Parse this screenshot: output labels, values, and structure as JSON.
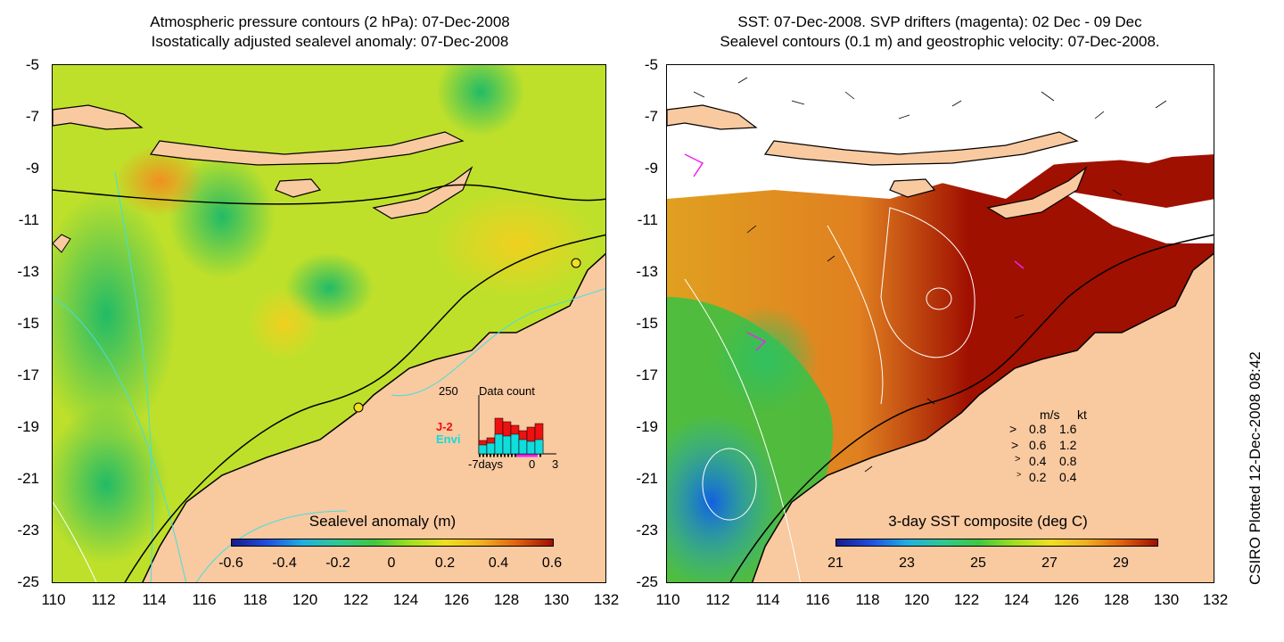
{
  "left_panel": {
    "title_line1": "Atmospheric pressure contours (2 hPa): 07-Dec-2008",
    "title_line2": "Isostatically adjusted sealevel anomaly: 07-Dec-2008",
    "colorbar_title": "Sealevel anomaly (m)",
    "colorbar_ticks": [
      "-0.6",
      "-0.4",
      "-0.2",
      "0",
      "0.2",
      "0.4",
      "0.6"
    ],
    "inset": {
      "max_label": "250",
      "title": "Data count",
      "series": [
        "J-2",
        "Envi"
      ],
      "series_colors": [
        "#ee1111",
        "#11dddd"
      ],
      "x_ticks": [
        "-7days",
        "0",
        "3"
      ]
    }
  },
  "right_panel": {
    "title_line1": "SST: 07-Dec-2008. SVP drifters (magenta): 02 Dec - 09 Dec",
    "title_line2": "Sealevel contours (0.1 m) and geostrophic velocity: 07-Dec-2008.",
    "colorbar_title": "3-day SST composite (deg C)",
    "colorbar_ticks": [
      "21",
      "23",
      "25",
      "27",
      "29"
    ],
    "velocity_legend": {
      "header_ms": "m/s",
      "header_kt": "kt",
      "rows": [
        {
          "ms": "0.8",
          "kt": "1.6"
        },
        {
          "ms": "0.6",
          "kt": "1.2"
        },
        {
          "ms": "0.4",
          "kt": "0.8"
        },
        {
          "ms": "0.2",
          "kt": "0.4"
        }
      ]
    }
  },
  "axes": {
    "y_ticks": [
      "-5",
      "-7",
      "-9",
      "-11",
      "-13",
      "-15",
      "-17",
      "-19",
      "-21",
      "-23",
      "-25"
    ],
    "x_ticks": [
      "110",
      "112",
      "114",
      "116",
      "118",
      "120",
      "122",
      "124",
      "126",
      "128",
      "130",
      "132"
    ]
  },
  "side_note": "CSIRO Plotted 12-Dec-2008 08:42",
  "colors": {
    "land": "#f9c9a0",
    "coast": "#000000",
    "contour": "#40e0e0",
    "sst_warm": "#a01000",
    "sla_mid": "#c8e020"
  }
}
